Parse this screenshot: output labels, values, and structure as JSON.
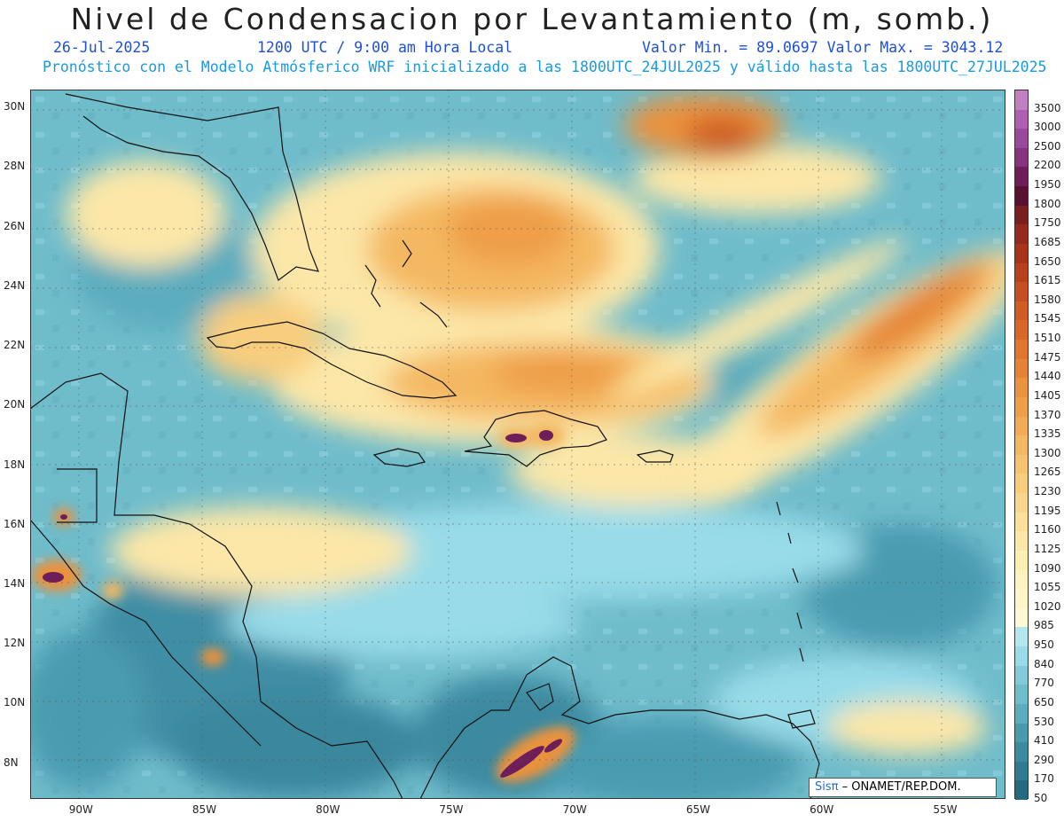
{
  "header": {
    "title": "Nivel de Condensacion por Levantamiento (m, somb.)",
    "date": "26-Jul-2025",
    "time": "1200 UTC / 9:00 am Hora Local",
    "minmax": "Valor Min. = 89.0697  Valor Max. = 3043.12",
    "model_line": "Pronóstico con el Modelo Atmósferico WRF inicializado a las 1800UTC_24JUL2025 y válido hasta las  1800UTC_27JUL2025"
  },
  "map": {
    "lat_labels": [
      "30N",
      "28N",
      "26N",
      "24N",
      "22N",
      "20N",
      "18N",
      "16N",
      "14N",
      "12N",
      "10N",
      "8N"
    ],
    "lat_values": [
      30,
      28,
      26,
      24,
      22,
      20,
      18,
      16,
      14,
      12,
      10,
      8
    ],
    "lon_labels": [
      "90W",
      "85W",
      "80W",
      "75W",
      "70W",
      "65W",
      "60W",
      "55W"
    ],
    "lon_values": [
      -90,
      -85,
      -80,
      -75,
      -70,
      -65,
      -60,
      -55
    ],
    "extent": {
      "lon_min": -92,
      "lon_max": -52.5,
      "lat_min": 6.8,
      "lat_max": 30.6
    }
  },
  "colorbar": {
    "labels": [
      "3500",
      "3000",
      "2500",
      "2200",
      "1950",
      "1800",
      "1750",
      "1685",
      "1650",
      "1615",
      "1580",
      "1545",
      "1510",
      "1475",
      "1440",
      "1405",
      "1370",
      "1335",
      "1300",
      "1265",
      "1230",
      "1195",
      "1160",
      "1125",
      "1090",
      "1055",
      "1020",
      "985",
      "950",
      "840",
      "770",
      "650",
      "530",
      "410",
      "290",
      "170",
      "50"
    ],
    "colors": [
      "#c27fc2",
      "#b060b0",
      "#9a4a9a",
      "#86347e",
      "#6e1f5a",
      "#5a1030",
      "#7a1f1f",
      "#95291d",
      "#a9341c",
      "#b9401d",
      "#c64e20",
      "#d05b24",
      "#d96828",
      "#e0762e",
      "#e58436",
      "#ea923e",
      "#ef9f48",
      "#f2ac55",
      "#f4b862",
      "#f6c370",
      "#f8cd7e",
      "#f9d68c",
      "#fbdf9a",
      "#fce7a8",
      "#fdeeb4",
      "#fef3bf",
      "#fef6c8",
      "#fef9d4",
      "#b4e6ee",
      "#99dbe8",
      "#83cbd8",
      "#6fbccb",
      "#5aacbe",
      "#4a9bb0",
      "#3c8aa0",
      "#2f7a90",
      "#256b80"
    ]
  },
  "credit": {
    "brand": "Sisπ",
    "text": " – ONAMET/REP.DOM."
  }
}
